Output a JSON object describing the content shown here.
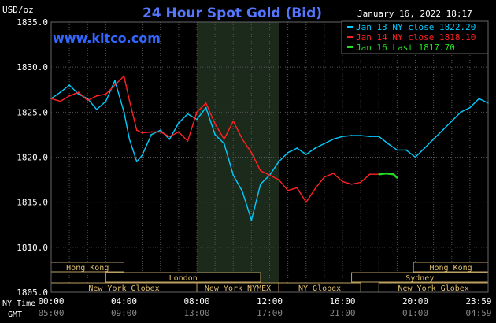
{
  "chart_data": {
    "type": "line",
    "title": "24 Hour Spot Gold (Bid)",
    "watermark": "www.kitco.com",
    "datetime": "January 16, 2022 18:17",
    "yunit": "USD/oz",
    "ylim": [
      1805.0,
      1835.0
    ],
    "y_ticks": [
      "1835.0",
      "1830.0",
      "1825.0",
      "1820.0",
      "1815.0",
      "1810.0",
      "1805.0"
    ],
    "xlim": [
      0,
      24
    ],
    "grid": true,
    "legend_position": "top-right",
    "x_axis": {
      "row1_label": "NY Time",
      "row2_label": "GMT",
      "ticks_ny": [
        "00:00",
        "04:00",
        "08:00",
        "12:00",
        "16:00",
        "20:00",
        "23:59"
      ],
      "ticks_gmt": [
        "05:00",
        "09:00",
        "13:00",
        "17:00",
        "21:00",
        "01:00",
        "04:59"
      ]
    },
    "shaded_session": {
      "label": "New York NYMEX",
      "x": [
        8,
        12.5
      ]
    },
    "sessions": [
      {
        "label": "Hong Kong",
        "start": 0,
        "end": 4,
        "row": 1
      },
      {
        "label": "Hong Kong",
        "start": 19.9,
        "end": 24,
        "row": 1
      },
      {
        "label": "London",
        "start": 3,
        "end": 11.5,
        "row": 2
      },
      {
        "label": "Sydney",
        "start": 16.5,
        "end": 24,
        "row": 2
      },
      {
        "label": "New York Globex",
        "start": 0,
        "end": 8,
        "row": 3
      },
      {
        "label": "New York NYMEX",
        "start": 8,
        "end": 12.5,
        "row": 3
      },
      {
        "label": "NY Globex",
        "start": 12.5,
        "end": 17,
        "row": 3
      },
      {
        "label": "New York Globex",
        "start": 18,
        "end": 24,
        "row": 3
      }
    ],
    "series": [
      {
        "name": "Jan 13 NY close 1822.20",
        "color": "#00ccff",
        "x": [
          0,
          0.5,
          1,
          1.5,
          2,
          2.5,
          3,
          3.5,
          4,
          4.3,
          4.7,
          5,
          5.5,
          6,
          6.5,
          7,
          7.5,
          8,
          8.5,
          9,
          9.5,
          10,
          10.5,
          11,
          11.5,
          12,
          12.5,
          13,
          13.5,
          14,
          14.5,
          15,
          15.5,
          16,
          16.5,
          17,
          17.5,
          18,
          18.5,
          19,
          19.5,
          20,
          20.5,
          21,
          21.5,
          22,
          22.5,
          23,
          23.5,
          24
        ],
        "y": [
          1826.5,
          1827.2,
          1828.0,
          1827.0,
          1826.5,
          1825.3,
          1826.2,
          1828.5,
          1825.0,
          1822.0,
          1819.5,
          1820.2,
          1822.5,
          1823.0,
          1822.0,
          1823.8,
          1824.8,
          1824.2,
          1825.5,
          1822.5,
          1821.5,
          1818.0,
          1816.2,
          1813.0,
          1817.0,
          1818.0,
          1819.5,
          1820.5,
          1821.0,
          1820.3,
          1821.0,
          1821.5,
          1822.0,
          1822.3,
          1822.4,
          1822.4,
          1822.3,
          1822.3,
          1821.5,
          1820.8,
          1820.8,
          1820.0,
          1821.0,
          1822.0,
          1823.0,
          1824.0,
          1825.0,
          1825.5,
          1826.5,
          1826.0
        ]
      },
      {
        "name": "Jan 14 NY close 1818.10",
        "color": "#ff2222",
        "x": [
          0,
          0.5,
          1,
          1.5,
          2,
          2.5,
          3,
          3.5,
          4,
          4.3,
          4.7,
          5,
          5.5,
          6,
          6.5,
          7,
          7.5,
          8,
          8.5,
          9,
          9.5,
          10,
          10.5,
          11,
          11.5,
          12,
          12.5,
          13,
          13.5,
          14,
          14.5,
          15,
          15.5,
          16,
          16.5,
          17,
          17.5,
          18
        ],
        "y": [
          1826.5,
          1826.2,
          1826.8,
          1827.2,
          1826.3,
          1826.8,
          1827.0,
          1828.0,
          1829.0,
          1826.3,
          1823.0,
          1822.7,
          1822.8,
          1822.8,
          1822.3,
          1822.8,
          1821.8,
          1825.0,
          1826.0,
          1823.7,
          1822.0,
          1824.0,
          1822.0,
          1820.5,
          1818.5,
          1818.0,
          1817.5,
          1816.3,
          1816.6,
          1815.0,
          1816.5,
          1817.8,
          1818.2,
          1817.3,
          1817.0,
          1817.2,
          1818.1,
          1818.1
        ]
      },
      {
        "name": "Jan 16 Last 1817.70",
        "color": "#22dd22",
        "x": [
          18,
          18.4,
          18.8,
          19.0
        ],
        "y": [
          1818.1,
          1818.2,
          1818.1,
          1817.7
        ]
      }
    ]
  }
}
